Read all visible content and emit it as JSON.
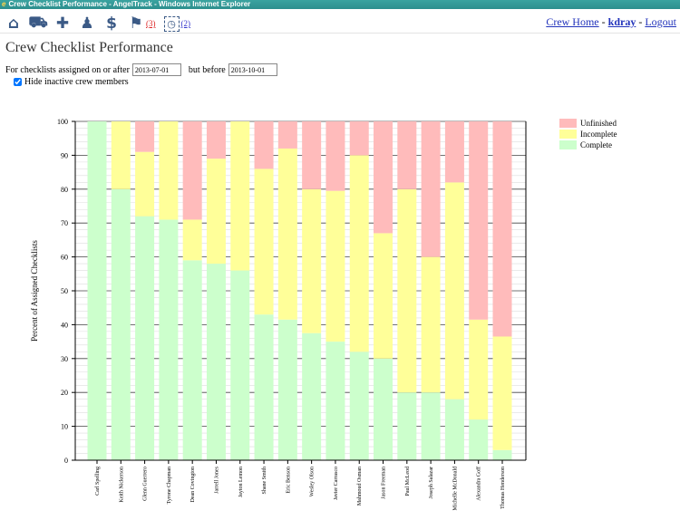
{
  "window": {
    "title": "Crew Checklist Performance - AngelTrack - Windows Internet Explorer"
  },
  "toolbar": {
    "icons": [
      "home-icon",
      "ambulance-icon",
      "medical-cross-icon",
      "crew-icon",
      "dollar-icon",
      "flag-icon",
      "calendar-clock-icon"
    ],
    "flag_count": "(3)",
    "calendar_count": "(2)",
    "flag_color": "#dd2222"
  },
  "header": {
    "crew_home": "Crew Home",
    "user": "kdray",
    "logout": "Logout",
    "sep": "-"
  },
  "page": {
    "title": "Crew Checklist Performance"
  },
  "filters": {
    "after_label": "For checklists assigned on or after",
    "after_value": "2013-07-01",
    "before_label": "but before",
    "before_value": "2013-10-01",
    "hide_inactive_label": "Hide inactive crew members",
    "hide_inactive_checked": true
  },
  "chart_data": {
    "type": "bar",
    "stacked": true,
    "ylabel": "Percent of Assigned Checklists",
    "ylim": [
      0,
      100
    ],
    "yticks": [
      0,
      10,
      20,
      30,
      40,
      50,
      60,
      70,
      80,
      90,
      100
    ],
    "grid": true,
    "legend": "right",
    "categories": [
      "Carl Spelling",
      "Keith Nickerson",
      "Glenn Guerrero",
      "Tyrone Chapman",
      "Dean Covington",
      "Jarrell Jones",
      "Jayton Lemon",
      "Shane Smith",
      "Eric Benson",
      "Wesley Olson",
      "Javier Carrasco",
      "Mahmoud Osman",
      "Jason Freeman",
      "Paul McLeod",
      "Joseph Salazar",
      "Michelle McDonald",
      "Alexandra Goff",
      "Thomas Henderson"
    ],
    "series": [
      {
        "name": "Complete",
        "color": "#ccffcc",
        "values": [
          100,
          80,
          72,
          71,
          59,
          58,
          56,
          43,
          41.5,
          37.5,
          35,
          32,
          30,
          20,
          20,
          18,
          12,
          3
        ]
      },
      {
        "name": "Incomplete",
        "color": "#ffff99",
        "values": [
          0,
          20,
          19,
          29,
          12,
          31,
          44,
          43,
          50.5,
          42.5,
          44.5,
          58,
          37,
          60,
          40,
          64,
          29.5,
          33.5
        ]
      },
      {
        "name": "Unfinished",
        "color": "#ffbbbb",
        "values": [
          0,
          0,
          9,
          0,
          29,
          11,
          0,
          14,
          8,
          20,
          20.5,
          10,
          33,
          20,
          40,
          18,
          58.5,
          63.5
        ]
      }
    ]
  }
}
